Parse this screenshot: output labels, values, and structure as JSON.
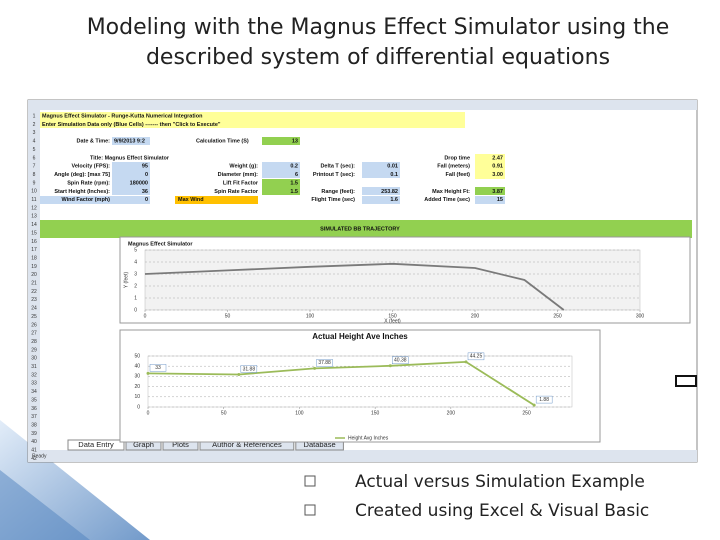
{
  "header": {
    "title_lines": [
      "Modeling with the Magnus Effect Simulator using the",
      "described system of differential equations"
    ]
  },
  "sheet": {
    "row_numbers": [
      1,
      2,
      3,
      4,
      5,
      6,
      7,
      8,
      9,
      10,
      11,
      12,
      13,
      14,
      15,
      16,
      17,
      18,
      19,
      20,
      21,
      22,
      23,
      24,
      25,
      26,
      27,
      28,
      29,
      30,
      31,
      32,
      33,
      34,
      35,
      36,
      37,
      38,
      39,
      40,
      41,
      42
    ],
    "cells": [
      "Magnus Effect Simulator - Runge-Kutta Numerical Integration",
      "Enter Simulation Data only (Blue Cells) ------- then \"Click to Execute\"",
      "Date & Time:",
      "9/9/2013 9:2",
      "Calculation Time (S)",
      "13",
      "Title: Magnus Effect Simulator",
      "Drop time",
      "2.47",
      "Velocity (FPS):",
      "95",
      "Weight (g):",
      "0.2",
      "Delta T (sec):",
      "0.01",
      "Fall (meters)",
      "0.91",
      "Angle (deg): [max 75]",
      "0",
      "Diameter (mm):",
      "6",
      "Printout T (sec):",
      "0.1",
      "Fall (feet)",
      "3.00",
      "Spin Rate (rpm):",
      "180000",
      "Lift Fit Factor",
      "1.5",
      "Start Height (Inches):",
      "36",
      "Spin Rate Factor",
      "1.5",
      "Range (feet):",
      "253.82",
      "Max Height Ft:",
      "3.87",
      "Wind Factor (mph)",
      "0",
      "Max Wind",
      "Flight Time (sec)",
      "1.6",
      "Added Time (sec)",
      "15",
      "SIMULATED BB TRAJECTORY"
    ],
    "tabs": [
      "Data Entry",
      "Graph",
      "Plots",
      "Author & References",
      "Database"
    ],
    "status": "Ready",
    "charts": [
      {
        "type": "line",
        "title": "Magnus Effect Simulator",
        "x_label": "X (feet)",
        "y_label": "Y (feet)",
        "x": [
          0,
          50,
          100,
          150,
          200,
          230,
          253.82
        ],
        "values": [
          3,
          3.3,
          3.6,
          3.85,
          3.5,
          2.5,
          0
        ],
        "color": "#7a7a7a",
        "xlim": [
          0,
          300
        ],
        "xticks": [
          0,
          50,
          100,
          150,
          200,
          250,
          300
        ],
        "ylim": [
          0,
          5
        ],
        "yticks": [
          0,
          1,
          2,
          3,
          4,
          5
        ],
        "grid": true
      },
      {
        "type": "line",
        "title": "Actual Height Ave Inches",
        "series": [
          {
            "name": "Height Avg Inches",
            "color": "#9bbb59",
            "x": [
              0,
              60,
              110,
              160,
              210,
              255
            ],
            "values": [
              33,
              31.88,
              37.88,
              40.38,
              44.25,
              1.88
            ]
          }
        ],
        "xlim": [
          0,
          280
        ],
        "xticks": [
          0,
          50,
          100,
          150,
          200,
          250
        ],
        "ylim": [
          0,
          50
        ],
        "yticks": [
          0,
          10,
          20,
          30,
          40,
          50
        ],
        "grid": true
      }
    ]
  },
  "bullets": [
    "Actual versus Simulation Example",
    "Created using Excel & Visual Basic"
  ]
}
